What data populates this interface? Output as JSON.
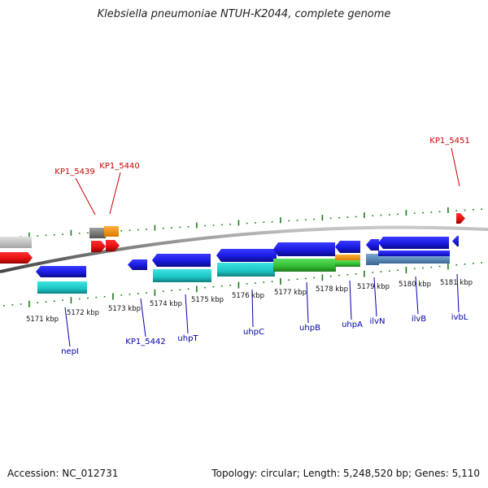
{
  "title": "Klebsiella pneumoniae NTUH-K2044, complete genome",
  "footer": {
    "accession": "Accession: NC_012731",
    "summary": "Topology: circular; Length: 5,248,520 bp; Genes: 5,110"
  },
  "colors": {
    "label_red": "#cc0000",
    "label_blue": "#0000aa",
    "tick_green": "#1a7a1a",
    "backbone": "#888888",
    "cds_blue": "#1c1ce6",
    "rna_red": "#e81515",
    "cyan": "#19c9c9",
    "green": "#38c338",
    "orange": "#f39415",
    "grey": "#8a8a8a",
    "steel": "#5a86b4"
  },
  "scale_labels": [
    "5171 kbp",
    "5172 kbp",
    "5173 kbp",
    "5174 kbp",
    "5175 kbp",
    "5176 kbp",
    "5177 kbp",
    "5178 kbp",
    "5179 kbp",
    "5180 kbp",
    "5181 kbp"
  ],
  "top_labels": [
    {
      "text": "KP1_5439"
    },
    {
      "text": "KP1_5440"
    },
    {
      "text": "KP1_5451"
    }
  ],
  "bottom_labels": [
    {
      "text": "nepI"
    },
    {
      "text": "KP1_5442"
    },
    {
      "text": "uhpT"
    },
    {
      "text": "uhpC"
    },
    {
      "text": "uhpB"
    },
    {
      "text": "uhpA"
    },
    {
      "text": "ilvN"
    },
    {
      "text": "ilvB"
    },
    {
      "text": "ivbL"
    }
  ]
}
